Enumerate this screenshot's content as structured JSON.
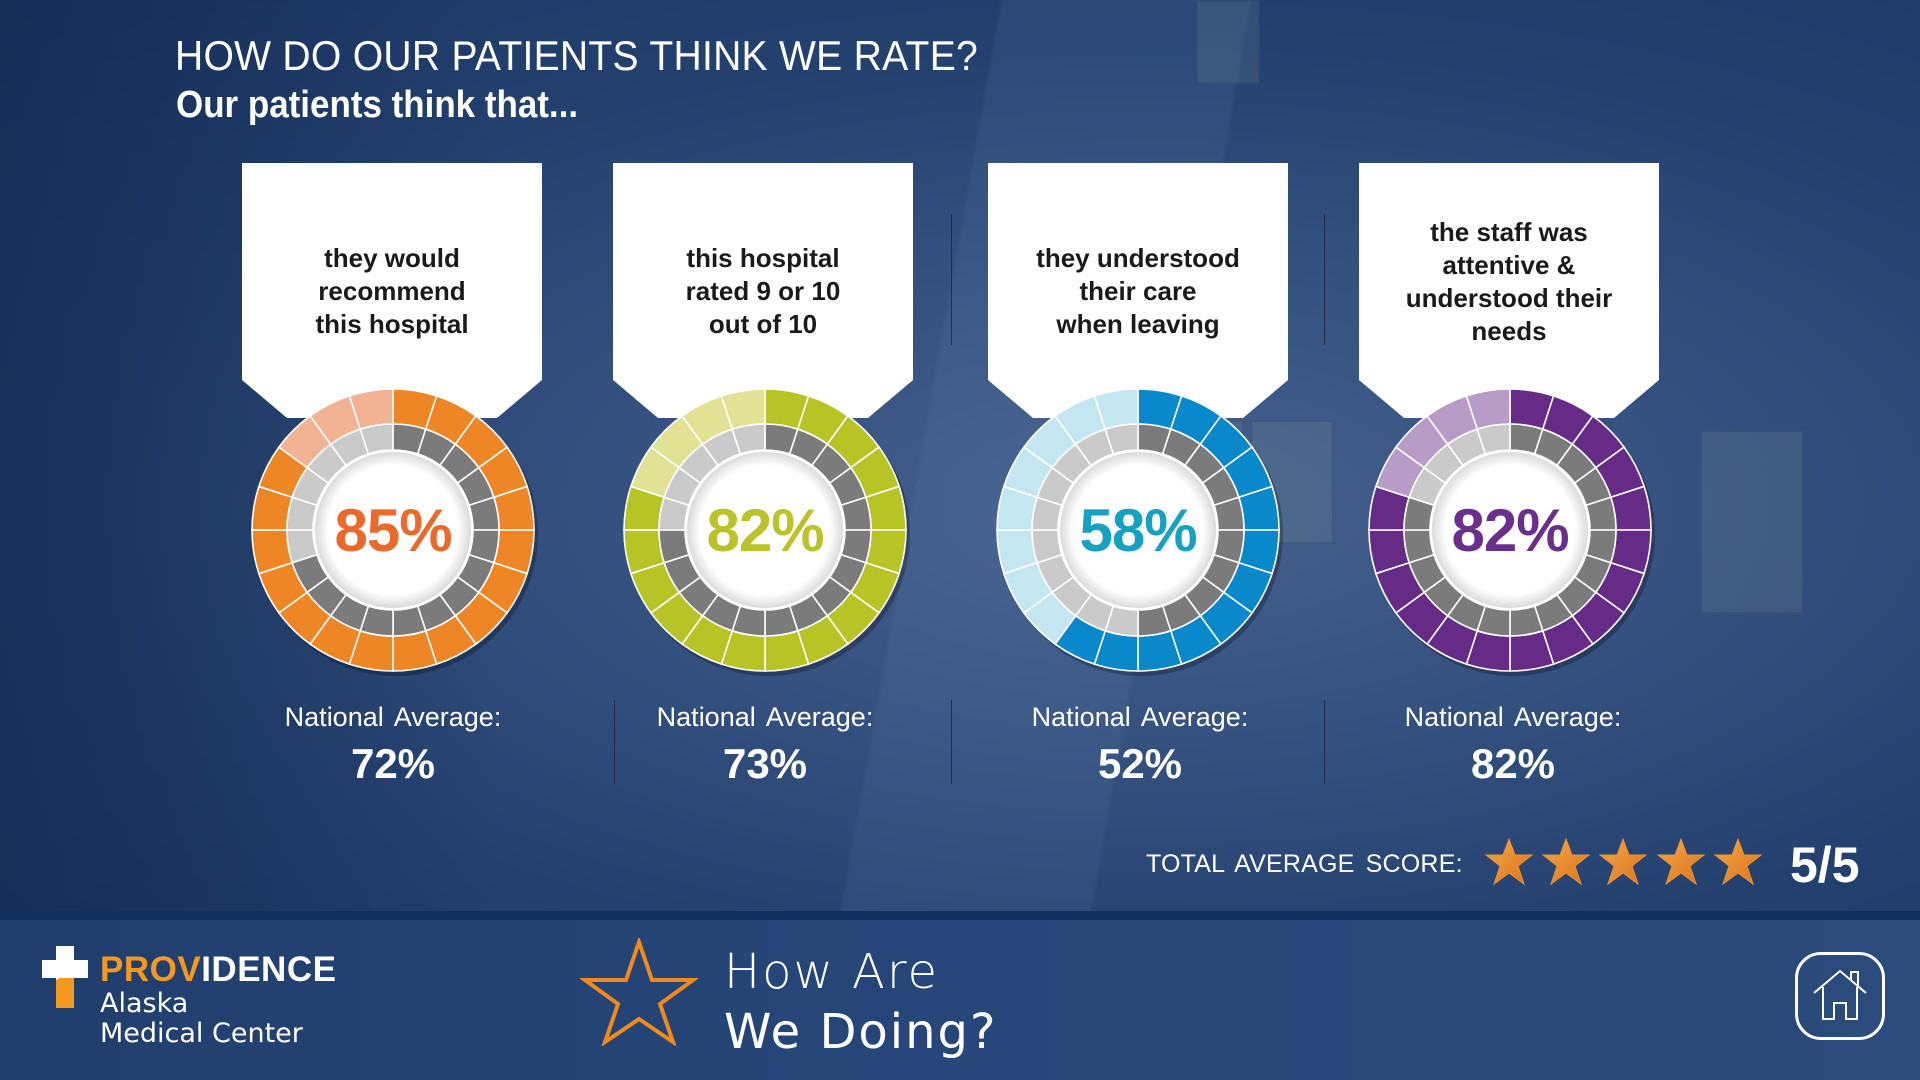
{
  "header": {
    "title": "HOW DO OUR PATIENTS THINK WE RATE?",
    "subtitle": "Our patients think that..."
  },
  "metrics": [
    {
      "statement": "they would\nrecommend\nthis hospital",
      "value": 85,
      "value_label": "85%",
      "national_average_label": "National  Average:",
      "national_average": 72,
      "national_average_value": "72%",
      "color": "#ef8626",
      "light_color": "#f2b394",
      "text_color": "#ea6a2b"
    },
    {
      "statement": "this hospital\nrated 9 or 10\nout of 10",
      "value": 82,
      "value_label": "82%",
      "national_average_label": "National  Average:",
      "national_average": 73,
      "national_average_value": "73%",
      "color": "#b6c525",
      "light_color": "#e1e293",
      "text_color": "#bac42a"
    },
    {
      "statement": "they understood\ntheir care\nwhen leaving",
      "value": 58,
      "value_label": "58%",
      "national_average_label": "National  Average:",
      "national_average": 52,
      "national_average_value": "52%",
      "color": "#0a88cc",
      "light_color": "#c4e6f1",
      "text_color": "#16a0c2"
    },
    {
      "statement": "the staff was\nattentive &\nunderstood their\nneeds",
      "value": 82,
      "value_label": "82%",
      "national_average_label": "National  Average:",
      "national_average": 82,
      "national_average_value": "82%",
      "color": "#662b86",
      "light_color": "#b89bc7",
      "text_color": "#6a2f8a"
    }
  ],
  "ring": {
    "segments": 20,
    "inner_filled_color": "#7b7b7b",
    "inner_empty_color": "#cacaca"
  },
  "score": {
    "label": "TOTAL  AVERAGE SCORE:",
    "stars": 5,
    "max_stars": 5,
    "value_label": "5/5",
    "star_color": "#f0922c"
  },
  "footer": {
    "brand_orange": "PROV",
    "brand_white": "IDENCE",
    "brand_line1": "Alaska",
    "brand_line2": "Medical Center",
    "heading_line1": "How Are",
    "heading_line2": "We Doing?",
    "star_icon": "star-outline-icon",
    "home_icon": "home-icon",
    "accent": "#f39a1e"
  }
}
